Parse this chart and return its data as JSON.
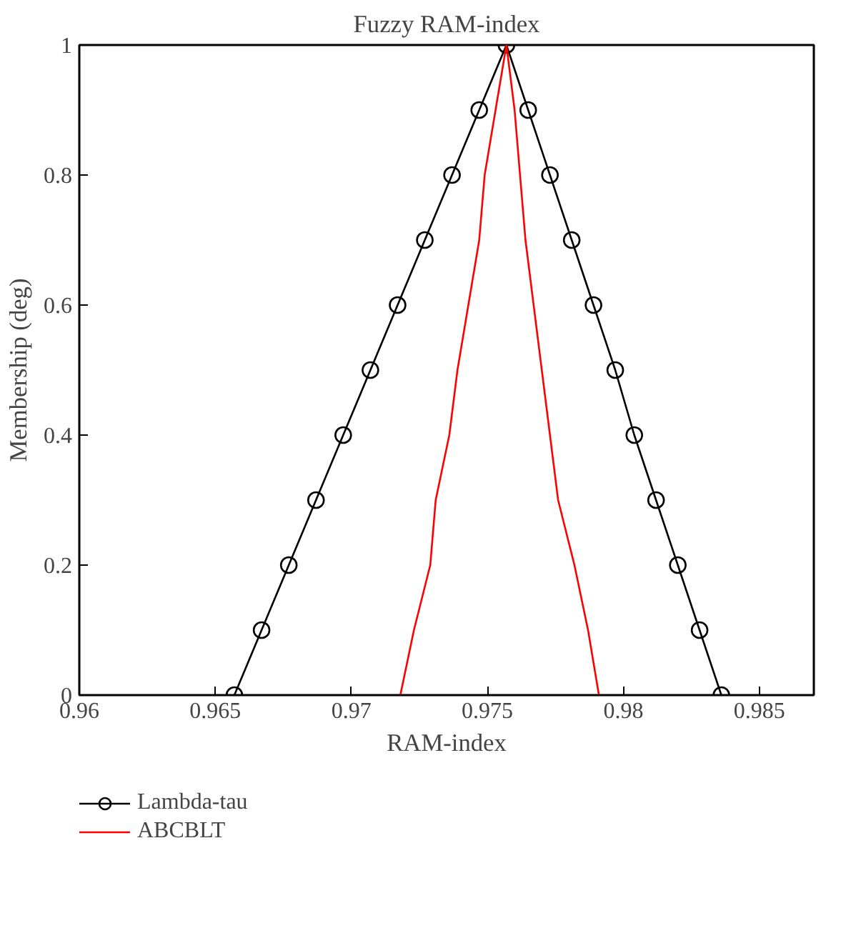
{
  "chart_data": {
    "type": "line",
    "title": "Fuzzy RAM-index",
    "xlabel": "RAM-index",
    "ylabel": "Membership (deg)",
    "xlim": [
      0.96,
      0.987
    ],
    "ylim": [
      0,
      1
    ],
    "xticks": [
      0.96,
      0.965,
      0.97,
      0.975,
      0.98,
      0.985
    ],
    "yticks": [
      0,
      0.2,
      0.4,
      0.6,
      0.8,
      1
    ],
    "grid": false,
    "legend": "bottom",
    "series": [
      {
        "name": "Lambda-tau",
        "color": "#000000",
        "marker": "circle",
        "x": [
          0.9657,
          0.9667,
          0.9677,
          0.9687,
          0.9697,
          0.9707,
          0.9717,
          0.9727,
          0.9737,
          0.9747,
          0.9757,
          0.9765,
          0.9773,
          0.9781,
          0.9789,
          0.9797,
          0.9804,
          0.9812,
          0.982,
          0.9828,
          0.9836
        ],
        "values": [
          0,
          0.1,
          0.2,
          0.3,
          0.4,
          0.5,
          0.6,
          0.7,
          0.8,
          0.9,
          1,
          0.9,
          0.8,
          0.7,
          0.6,
          0.5,
          0.4,
          0.3,
          0.2,
          0.1,
          0
        ]
      },
      {
        "name": "ABCBLT",
        "color": "#ff0000",
        "marker": "none",
        "x": [
          0.9718,
          0.9723,
          0.9729,
          0.9731,
          0.9736,
          0.9739,
          0.9743,
          0.9747,
          0.9749,
          0.9753,
          0.9757,
          0.976,
          0.9762,
          0.9764,
          0.9767,
          0.977,
          0.9773,
          0.9776,
          0.9782,
          0.9787,
          0.9791
        ],
        "values": [
          0,
          0.1,
          0.2,
          0.3,
          0.4,
          0.5,
          0.6,
          0.7,
          0.8,
          0.9,
          1,
          0.9,
          0.8,
          0.7,
          0.6,
          0.5,
          0.4,
          0.3,
          0.2,
          0.1,
          0
        ]
      }
    ]
  }
}
